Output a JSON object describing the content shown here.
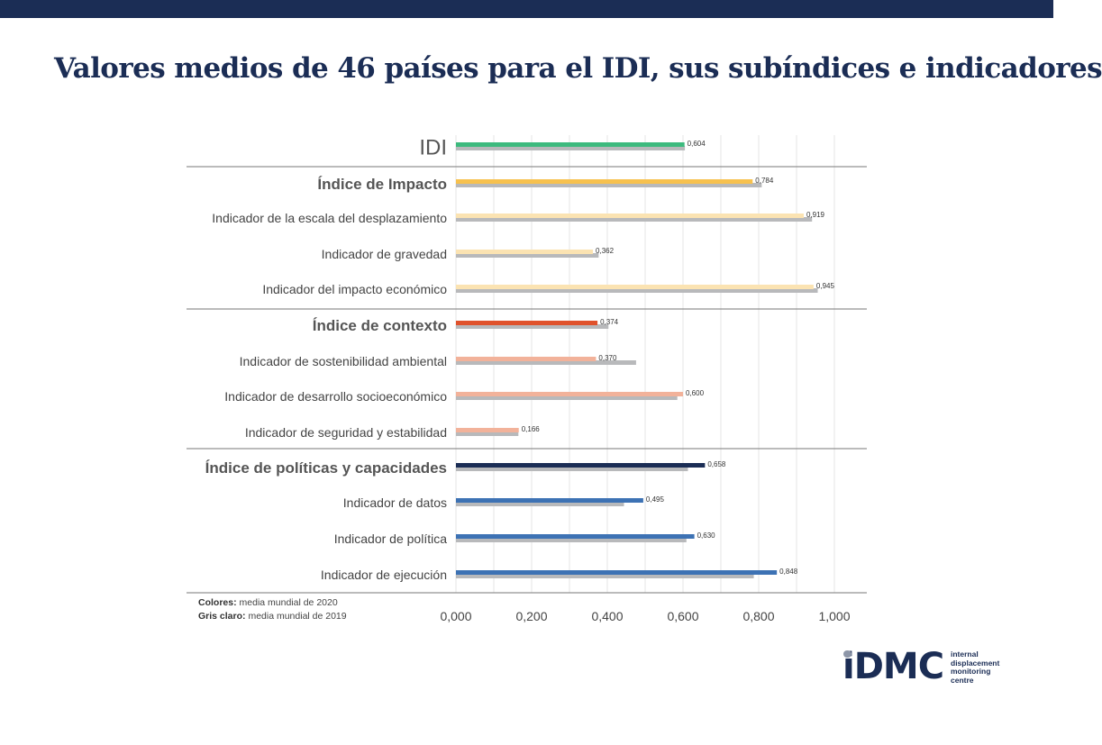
{
  "title": "Valores medios de 46 países para el IDI, sus subíndices e indicadores",
  "colors": {
    "header_bar": "#1b2d55",
    "idi": "#3dba7e",
    "impact_index": "#f7c14e",
    "impact_indicator": "#fbe3b2",
    "context_index": "#e0522c",
    "context_indicator": "#f2b29a",
    "policy_index": "#1b2d55",
    "policy_indicator": "#3d72b4",
    "gray_2019": "#b8b9bb"
  },
  "legend": {
    "colors_label": "Colores:",
    "colors_text": "media mundial de 2020",
    "gray_label": "Gris claro:",
    "gray_text": "media mundial de 2019"
  },
  "logo": {
    "mark": "iDMC",
    "line1": "internal",
    "line2": "displacement",
    "line3": "monitoring",
    "line4": "centre"
  },
  "chart_data": {
    "type": "bar",
    "orientation": "horizontal",
    "xlim": [
      0,
      1
    ],
    "x_ticks": [
      "0,000",
      "0,200",
      "0,400",
      "0,600",
      "0,800",
      "1,000"
    ],
    "grid": true,
    "legend": "bottom-left",
    "categories": [
      "IDI",
      "Índice de Impacto",
      "Indicador de la escala del desplazamiento",
      "Indicador de gravedad",
      "Indicador del impacto económico",
      "Índice de contexto",
      "Indicador de sostenibilidad ambiental",
      "Indicador de desarrollo socioeconómico",
      "Indicador de seguridad y estabilidad",
      "Índice de políticas y capacidades",
      "Indicador de datos",
      "Indicador de política",
      "Indicador de ejecución"
    ],
    "series": [
      {
        "name": "media mundial de 2020",
        "values": [
          0.604,
          0.784,
          0.919,
          0.362,
          0.945,
          0.374,
          0.37,
          0.6,
          0.166,
          0.658,
          0.495,
          0.63,
          0.848
        ],
        "labels": [
          "0,604",
          "0,784",
          "0,919",
          "0,362",
          "0,945",
          "0,374",
          "0,370",
          "0,600",
          "0,166",
          "0,658",
          "0,495",
          "0,630",
          "0,848"
        ]
      },
      {
        "name": "media mundial de 2019",
        "values": [
          0.605,
          0.808,
          0.941,
          0.377,
          0.956,
          0.403,
          0.476,
          0.585,
          0.165,
          0.613,
          0.444,
          0.609,
          0.787
        ]
      }
    ]
  }
}
